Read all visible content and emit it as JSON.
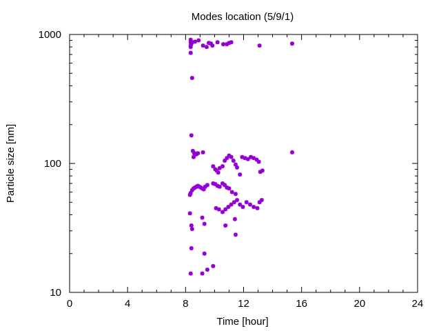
{
  "chart_data": {
    "type": "scatter",
    "title": "Modes location (5/9/1)",
    "xlabel": "Time [hour]",
    "ylabel": "Particle size [nm]",
    "xlim": [
      0,
      24
    ],
    "ylim": [
      10,
      1000
    ],
    "yscale": "log",
    "grid": false,
    "legend": "none",
    "x_ticks": [
      0,
      4,
      8,
      12,
      16,
      20,
      24
    ],
    "x_tick_labels": [
      "0",
      "4",
      "8",
      "12",
      "16",
      "20",
      "24"
    ],
    "y_ticks": [
      10,
      100,
      1000
    ],
    "y_tick_labels": [
      "10",
      "100",
      "1000"
    ],
    "marker_color": "#9400d3",
    "series": [
      {
        "x": [
          8.35,
          8.35,
          8.4,
          8.4,
          8.35,
          8.45,
          8.35,
          8.4,
          8.35,
          8.45,
          8.65,
          8.9,
          9.2,
          9.45,
          9.6,
          9.75,
          9.85,
          10.2,
          10.6,
          10.85,
          11.0,
          11.15,
          13.1,
          15.35,
          8.4,
          8.5,
          8.55,
          8.6,
          8.65,
          8.75,
          8.85,
          9.2,
          9.9,
          10.05,
          10.15,
          10.25,
          10.35,
          10.55,
          10.7,
          10.85,
          11.0,
          11.15,
          11.3,
          11.45,
          11.55,
          11.75,
          11.9,
          12.1,
          12.3,
          12.5,
          12.7,
          12.9,
          13.05,
          13.15,
          13.3,
          15.35,
          8.3,
          8.35,
          8.45,
          8.55,
          8.65,
          8.75,
          8.85,
          8.95,
          9.05,
          9.15,
          9.25,
          9.35,
          9.5,
          9.9,
          10.05,
          10.2,
          10.35,
          10.55,
          10.7,
          10.85,
          11.0,
          11.2,
          11.45,
          10.1,
          10.3,
          10.55,
          10.75,
          10.95,
          11.15,
          11.35,
          11.55,
          11.75,
          11.95,
          12.2,
          12.45,
          12.7,
          12.95,
          13.1,
          13.25,
          8.3,
          8.4,
          8.45,
          9.15,
          9.3,
          10.75,
          11.4,
          11.45,
          8.4,
          9.3,
          8.35,
          9.15,
          9.5,
          9.9
        ],
        "y": [
          870,
          910,
          850,
          870,
          820,
          870,
          800,
          850,
          720,
          460,
          880,
          900,
          820,
          800,
          860,
          850,
          820,
          870,
          840,
          840,
          860,
          870,
          820,
          850,
          165,
          125,
          112,
          120,
          117,
          118,
          120,
          122,
          95,
          90,
          88,
          85,
          92,
          95,
          105,
          110,
          115,
          112,
          105,
          98,
          93,
          82,
          112,
          110,
          108,
          112,
          110,
          107,
          103,
          86,
          88,
          122,
          57,
          59,
          62,
          64,
          65,
          66,
          67,
          66,
          65,
          64,
          63,
          66,
          68,
          70,
          69,
          67,
          66,
          70,
          68,
          65,
          64,
          60,
          58,
          45,
          44,
          42,
          44,
          46,
          48,
          50,
          52,
          48,
          46,
          50,
          48,
          46,
          45,
          50,
          52,
          41,
          33,
          31,
          38,
          34,
          33,
          37,
          28,
          22,
          20,
          14,
          14,
          15,
          16
        ]
      }
    ]
  }
}
